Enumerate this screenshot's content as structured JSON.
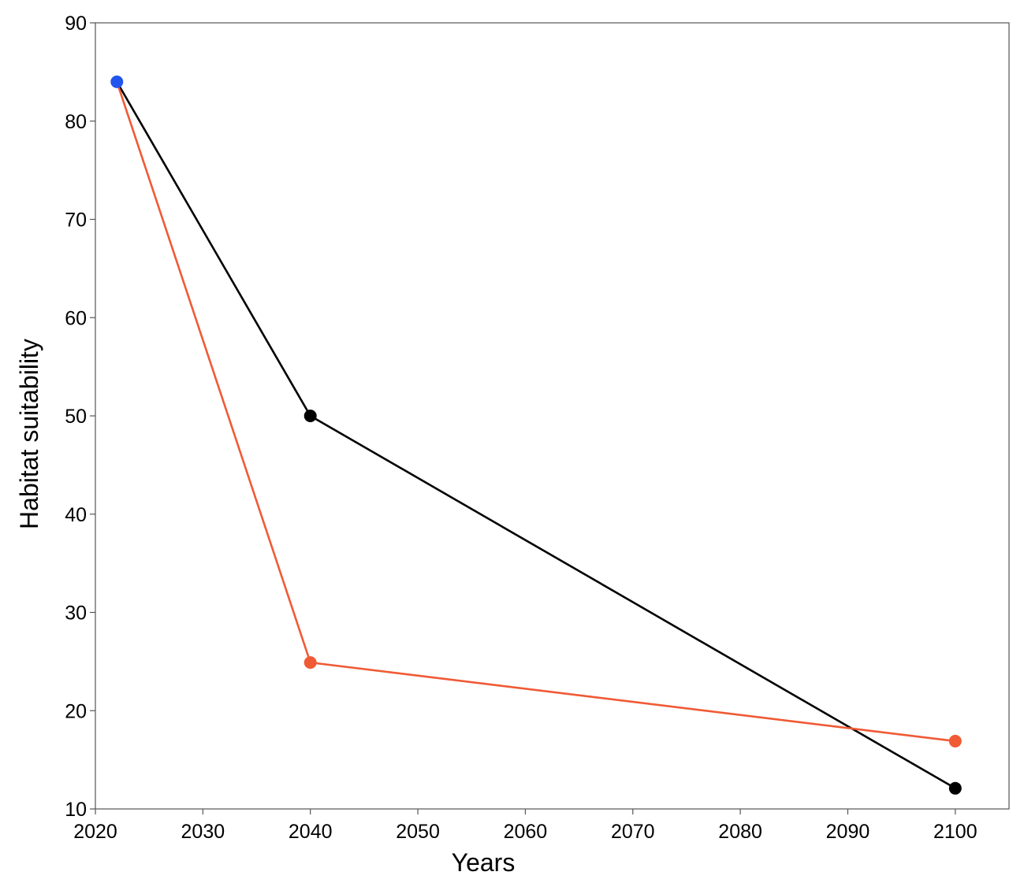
{
  "chart_data": {
    "type": "line",
    "title": "",
    "xlabel": "Years",
    "ylabel": "Habitat suitability",
    "xlim": [
      2020,
      2105
    ],
    "ylim": [
      10,
      90
    ],
    "xticks": [
      2020,
      2030,
      2040,
      2050,
      2060,
      2070,
      2080,
      2090,
      2100
    ],
    "yticks": [
      10,
      20,
      30,
      40,
      50,
      60,
      70,
      80,
      90
    ],
    "grid": false,
    "legend": "none",
    "series": [
      {
        "color": "#000000",
        "points": [
          {
            "x": 2022,
            "y": 84
          },
          {
            "x": 2040,
            "y": 50
          },
          {
            "x": 2100,
            "y": 12.1
          }
        ]
      },
      {
        "color": "#f05a35",
        "points": [
          {
            "x": 2022,
            "y": 84
          },
          {
            "x": 2040,
            "y": 24.9
          },
          {
            "x": 2100,
            "y": 16.9
          }
        ]
      }
    ],
    "highlight_point": {
      "x": 2022,
      "y": 84,
      "color": "#2255ee"
    }
  }
}
